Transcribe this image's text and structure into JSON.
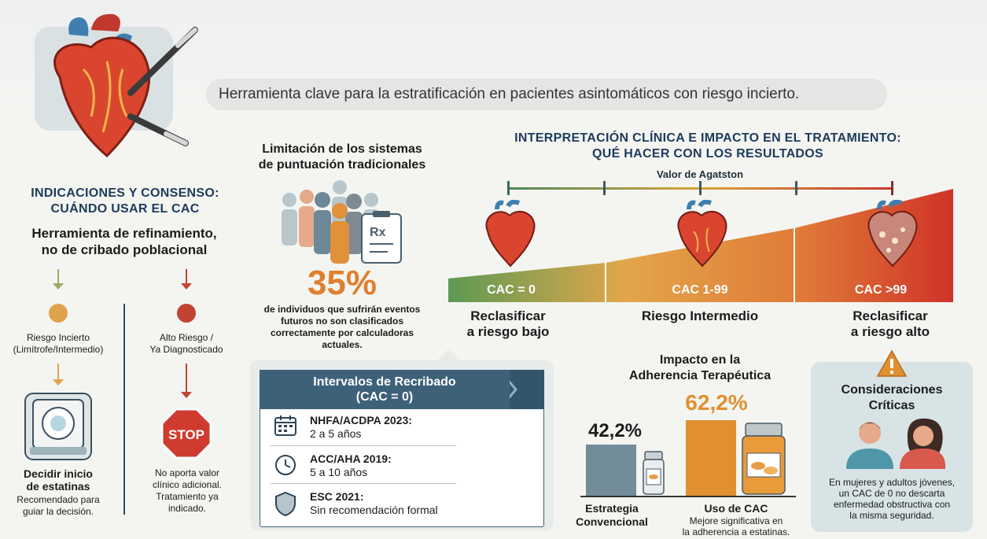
{
  "header": {
    "subtitle": "Herramienta clave para la estratificación en pacientes asintomáticos con riesgo incierto."
  },
  "indications": {
    "title_line1": "INDICACIONES Y CONSENSO:",
    "title_line2": "CUÁNDO USAR EL CAC",
    "subtitle_line1": "Herramienta de refinamiento,",
    "subtitle_line2": "no de cribado poblacional",
    "left": {
      "label_line1": "Riesgo Incierto",
      "label_line2": "(Limítrofe/Intermedio)",
      "result_line1": "Decidir inicio",
      "result_line2": "de estatinas",
      "note_line1": "Recomendado para",
      "note_line2": "guiar la decisión."
    },
    "right": {
      "label_line1": "Alto Riesgo /",
      "label_line2": "Ya Diagnosticado",
      "stop_text": "STOP",
      "note_line1": "No aporta valor",
      "note_line2": "clínico adicional.",
      "note_line3": "Tratamiento ya",
      "note_line4": "indicado."
    }
  },
  "limitation": {
    "title_line1": "Limitación de los sistemas",
    "title_line2": "de puntuación tradicionales",
    "stat": "35%",
    "text_line1": "de individuos que sufrirán eventos",
    "text_line2": "futuros no son clasificados",
    "text_line3": "correctamente por calculadoras",
    "text_line4": "actuales."
  },
  "intervals": {
    "title_line1": "Intervalos de Recribado",
    "title_line2": "(CAC = 0)",
    "rows": [
      {
        "icon": "calendar-icon",
        "title": "NHFA/ACDPA 2023:",
        "value": "2 a 5 años"
      },
      {
        "icon": "clock-icon",
        "title": "ACC/AHA 2019:",
        "value": "5 a 10 años"
      },
      {
        "icon": "shield-icon",
        "title": "ESC 2021:",
        "value": "Sin recomendación formal"
      }
    ]
  },
  "interpretation": {
    "title_line1": "INTERPRETACIÓN CLÍNICA E IMPACTO EN EL TRATAMIENTO:",
    "title_line2": "QUÉ HACER CON LOS RESULTADOS",
    "scale_label": "Valor de Agatston",
    "levels": [
      {
        "cac": "CAC = 0",
        "action_line1": "Reclasificar",
        "action_line2": "a riesgo bajo",
        "color": "#6e9e55"
      },
      {
        "cac": "CAC 1-99",
        "action_line1": "Riesgo Intermedio",
        "action_line2": "",
        "color": "#e19a3c"
      },
      {
        "cac": "CAC >99",
        "action_line1": "Reclasificar",
        "action_line2": "a riesgo alto",
        "color": "#d0412f"
      }
    ]
  },
  "adherence": {
    "title_line1": "Impacto en la",
    "title_line2": "Adherencia Terapéutica",
    "bars": [
      {
        "value": 42.2,
        "label": "42,2%",
        "name_line1": "Estrategia",
        "name_line2": "Convencional",
        "color": "#728c9a"
      },
      {
        "value": 62.2,
        "label": "62,2%",
        "name_line1": "Uso de CAC",
        "name_line2": "",
        "note_line1": "Mejore significativa en",
        "note_line2": "la adherencia a estatinas.",
        "color": "#e0902f"
      }
    ]
  },
  "critical": {
    "title_line1": "Consideraciones",
    "title_line2": "Críticas",
    "text_line1": "En mujeres y adultos jóvenes,",
    "text_line2": "un CAC de 0 no descarta",
    "text_line3": "enfermedad obstructiva con",
    "text_line4": "la misma seguridad."
  }
}
